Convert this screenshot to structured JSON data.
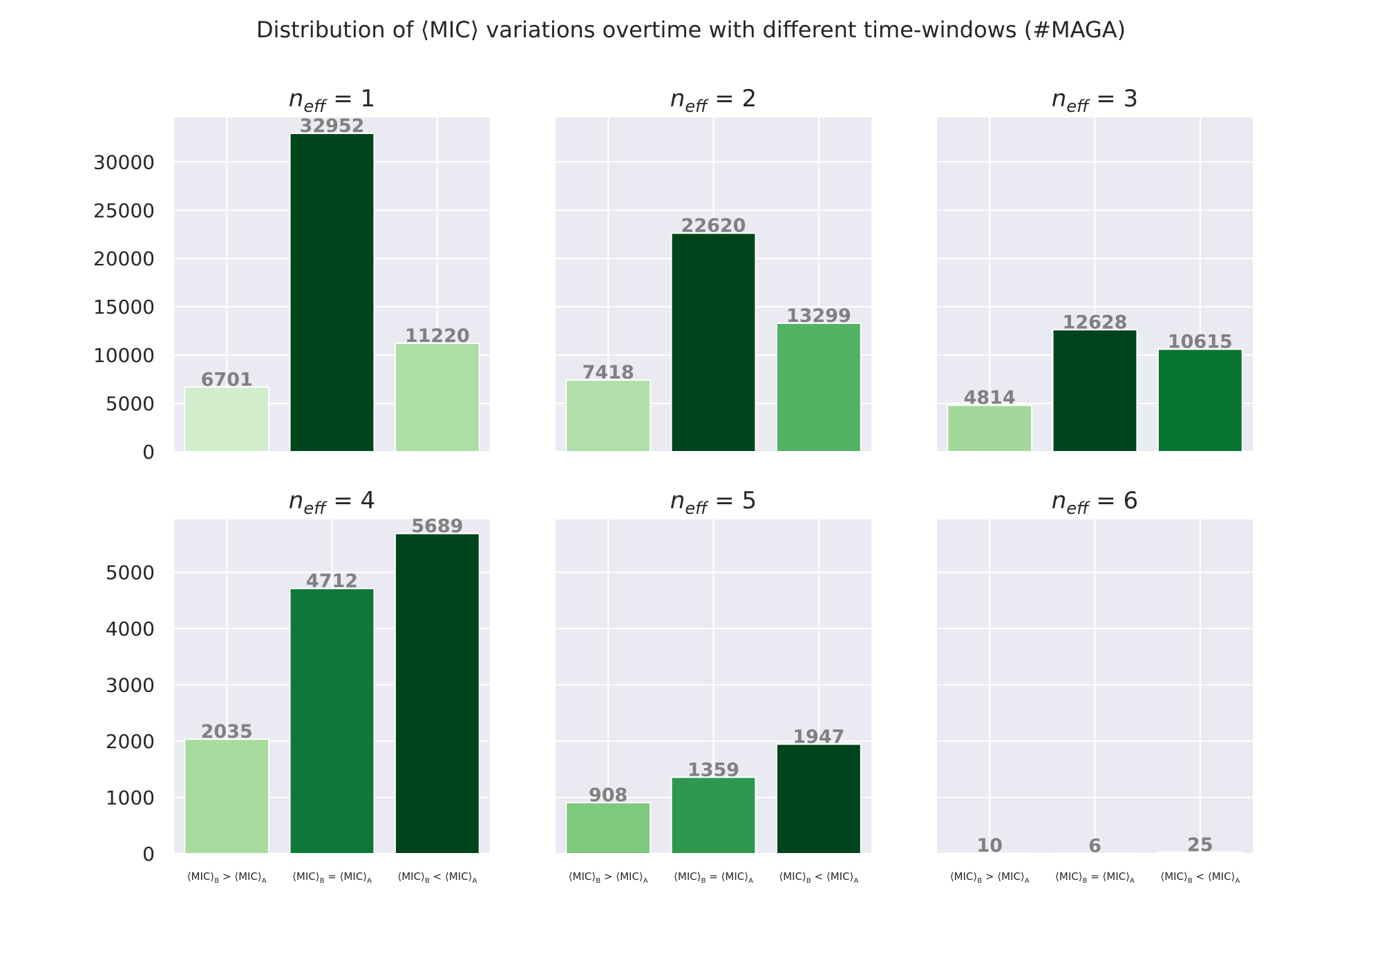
{
  "title": "Distribution of ⟨MIC⟩ variations overtime with different time-windows (#MAGA)",
  "chart_data": [
    {
      "type": "bar",
      "title": {
        "main": "n",
        "sub": "eff",
        "eq": " = 1"
      },
      "categories": [
        {
          "main": "⟨MIC⟩",
          "sub1": "B",
          "op": " > ⟨MIC⟩",
          "sub2": "A"
        },
        {
          "main": "⟨MIC⟩",
          "sub1": "B",
          "op": " = ⟨MIC⟩",
          "sub2": "A"
        },
        {
          "main": "⟨MIC⟩",
          "sub1": "B",
          "op": " < ⟨MIC⟩",
          "sub2": "A"
        }
      ],
      "values": [
        6701,
        32952,
        11220
      ],
      "colors": [
        "#d2edcc",
        "#00441b",
        "#acdea6"
      ],
      "ylim": [
        0,
        34600
      ],
      "yticks": [
        0,
        5000,
        10000,
        15000,
        20000,
        25000,
        30000
      ],
      "show_yticks": true,
      "show_xticks": false,
      "grid": true
    },
    {
      "type": "bar",
      "title": {
        "main": "n",
        "sub": "eff",
        "eq": " = 2"
      },
      "categories": [
        {
          "main": "⟨MIC⟩",
          "sub1": "B",
          "op": " > ⟨MIC⟩",
          "sub2": "A"
        },
        {
          "main": "⟨MIC⟩",
          "sub1": "B",
          "op": " = ⟨MIC⟩",
          "sub2": "A"
        },
        {
          "main": "⟨MIC⟩",
          "sub1": "B",
          "op": " < ⟨MIC⟩",
          "sub2": "A"
        }
      ],
      "values": [
        7418,
        22620,
        13299
      ],
      "colors": [
        "#b0dfaa",
        "#00441b",
        "#52b365"
      ],
      "ylim": [
        0,
        34600
      ],
      "yticks": [
        0,
        5000,
        10000,
        15000,
        20000,
        25000,
        30000
      ],
      "show_yticks": false,
      "show_xticks": false,
      "grid": true
    },
    {
      "type": "bar",
      "title": {
        "main": "n",
        "sub": "eff",
        "eq": " = 3"
      },
      "categories": [
        {
          "main": "⟨MIC⟩",
          "sub1": "B",
          "op": " > ⟨MIC⟩",
          "sub2": "A"
        },
        {
          "main": "⟨MIC⟩",
          "sub1": "B",
          "op": " = ⟨MIC⟩",
          "sub2": "A"
        },
        {
          "main": "⟨MIC⟩",
          "sub1": "B",
          "op": " < ⟨MIC⟩",
          "sub2": "A"
        }
      ],
      "values": [
        4814,
        12628,
        10615
      ],
      "colors": [
        "#a2d99b",
        "#00441b",
        "#077331"
      ],
      "ylim": [
        0,
        34600
      ],
      "yticks": [
        0,
        5000,
        10000,
        15000,
        20000,
        25000,
        30000
      ],
      "show_yticks": false,
      "show_xticks": false,
      "grid": true
    },
    {
      "type": "bar",
      "title": {
        "main": "n",
        "sub": "eff",
        "eq": " = 4"
      },
      "categories": [
        {
          "main": "⟨MIC⟩",
          "sub1": "B",
          "op": " > ⟨MIC⟩",
          "sub2": "A"
        },
        {
          "main": "⟨MIC⟩",
          "sub1": "B",
          "op": " = ⟨MIC⟩",
          "sub2": "A"
        },
        {
          "main": "⟨MIC⟩",
          "sub1": "B",
          "op": " < ⟨MIC⟩",
          "sub2": "A"
        }
      ],
      "values": [
        2035,
        4712,
        5689
      ],
      "colors": [
        "#a8dc9f",
        "#0d7837",
        "#00441b"
      ],
      "ylim": [
        0,
        5940
      ],
      "yticks": [
        0,
        1000,
        2000,
        3000,
        4000,
        5000
      ],
      "show_yticks": true,
      "show_xticks": true,
      "grid": true
    },
    {
      "type": "bar",
      "title": {
        "main": "n",
        "sub": "eff",
        "eq": " = 5"
      },
      "categories": [
        {
          "main": "⟨MIC⟩",
          "sub1": "B",
          "op": " > ⟨MIC⟩",
          "sub2": "A"
        },
        {
          "main": "⟨MIC⟩",
          "sub1": "B",
          "op": " = ⟨MIC⟩",
          "sub2": "A"
        },
        {
          "main": "⟨MIC⟩",
          "sub1": "B",
          "op": " < ⟨MIC⟩",
          "sub2": "A"
        }
      ],
      "values": [
        908,
        1359,
        1947
      ],
      "colors": [
        "#7fc97f",
        "#2f984f",
        "#00441b"
      ],
      "ylim": [
        0,
        5940
      ],
      "yticks": [
        0,
        1000,
        2000,
        3000,
        4000,
        5000
      ],
      "show_yticks": false,
      "show_xticks": true,
      "grid": true
    },
    {
      "type": "bar",
      "title": {
        "main": "n",
        "sub": "eff",
        "eq": " = 6"
      },
      "categories": [
        {
          "main": "⟨MIC⟩",
          "sub1": "B",
          "op": " > ⟨MIC⟩",
          "sub2": "A"
        },
        {
          "main": "⟨MIC⟩",
          "sub1": "B",
          "op": " = ⟨MIC⟩",
          "sub2": "A"
        },
        {
          "main": "⟨MIC⟩",
          "sub1": "B",
          "op": " < ⟨MIC⟩",
          "sub2": "A"
        }
      ],
      "values": [
        10,
        6,
        25
      ],
      "colors": [
        "#e6f5e1",
        "#f0f9ec",
        "#d7efd1"
      ],
      "ylim": [
        0,
        5940
      ],
      "yticks": [
        0,
        1000,
        2000,
        3000,
        4000,
        5000
      ],
      "show_yticks": false,
      "show_xticks": true,
      "grid": true
    }
  ]
}
